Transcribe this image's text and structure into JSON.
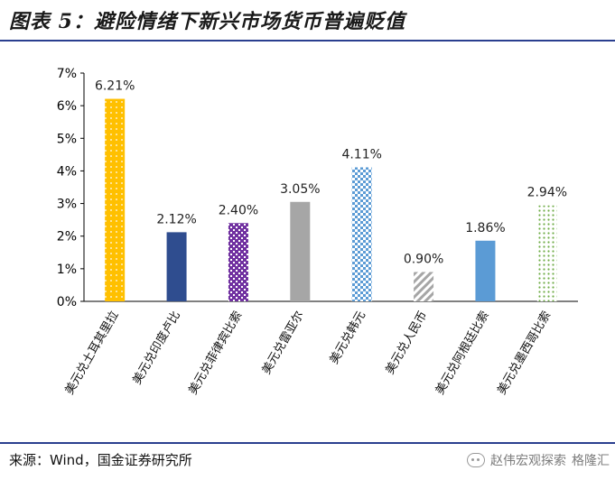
{
  "header": {
    "title": "图表 5：避险情绪下新兴市场货币普遍贬值"
  },
  "footer": {
    "source": "来源：Wind，国金证券研究所",
    "watermark": "赵伟宏观探索",
    "watermark2": "格隆汇"
  },
  "chart_data": {
    "type": "bar",
    "title": "",
    "xlabel": "",
    "ylabel": "",
    "ylim": [
      0,
      7
    ],
    "y_ticks": [
      "0%",
      "1%",
      "2%",
      "3%",
      "4%",
      "5%",
      "6%",
      "7%"
    ],
    "grid": false,
    "categories": [
      "美元兑土耳其里拉",
      "美元兑印度卢比",
      "美元兑菲律宾比索",
      "美元兑雷亚尔",
      "美元兑韩元",
      "美元兑人民币",
      "美元兑阿根廷比索",
      "美元兑墨西哥比索"
    ],
    "values": [
      6.21,
      2.12,
      2.4,
      3.05,
      4.11,
      0.9,
      1.86,
      2.94
    ],
    "labels": [
      "6.21%",
      "2.12%",
      "2.40%",
      "3.05%",
      "4.11%",
      "0.90%",
      "1.86%",
      "2.94%"
    ],
    "colors": [
      "#ffc000",
      "#2f4d8f",
      "#7030a0",
      "#a6a6a6",
      "#5b9bd5",
      "#a6a6a6",
      "#5b9bd5",
      "#70ad47"
    ],
    "patterns": [
      "dots",
      "solid",
      "checker",
      "solid",
      "checker",
      "diagonal",
      "solid",
      "dots"
    ]
  }
}
